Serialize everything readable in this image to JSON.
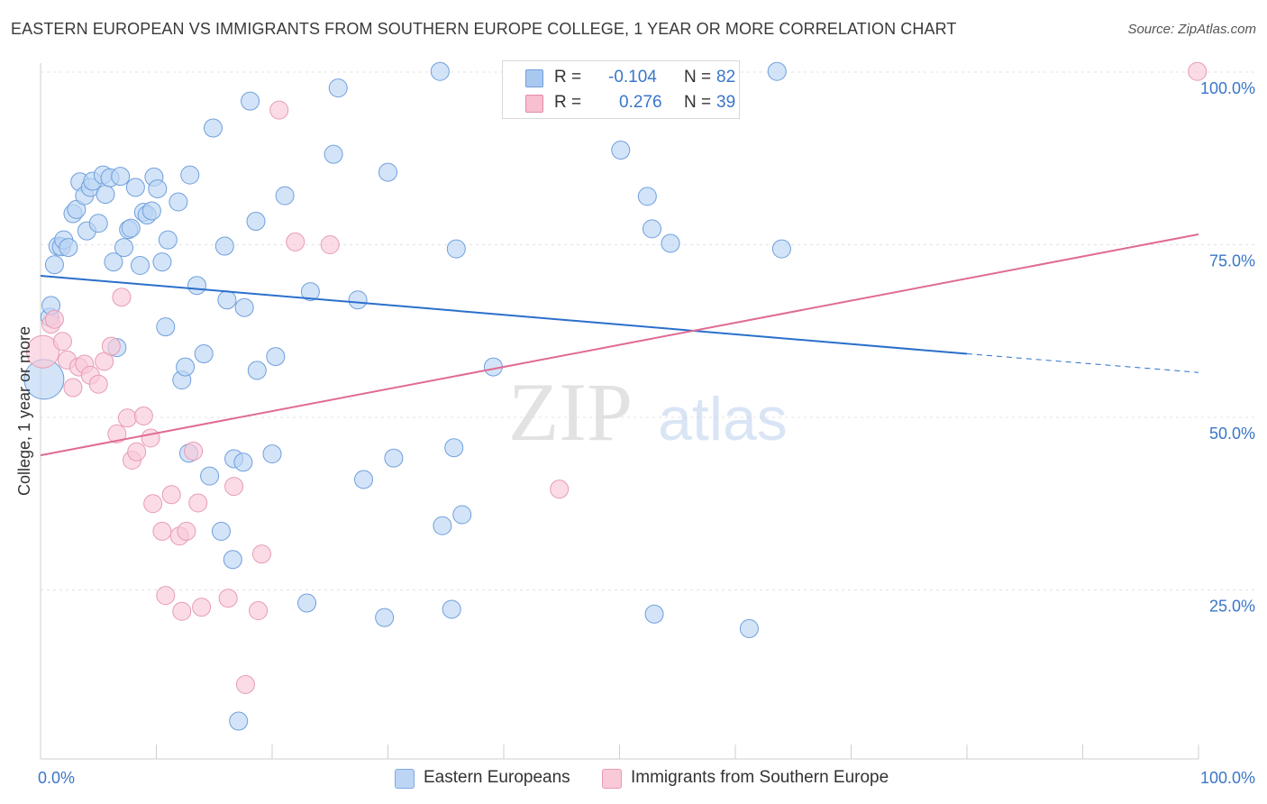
{
  "title": "EASTERN EUROPEAN VS IMMIGRANTS FROM SOUTHERN EUROPE COLLEGE, 1 YEAR OR MORE CORRELATION CHART",
  "source": "Source: ZipAtlas.com",
  "watermark": {
    "zip": "ZIP",
    "atlas": "atlas"
  },
  "legend": {
    "r_label": "R =",
    "n_label": "N =",
    "rows": [
      {
        "r": "-0.104",
        "n": "82",
        "color": "#a9c8f0",
        "border": "#6f9fdc"
      },
      {
        "r": "0.276",
        "n": "39",
        "color": "#f7bfd0",
        "border": "#e48aa8"
      }
    ]
  },
  "bottom_legend": [
    {
      "label": "Eastern Europeans",
      "color": "#bcd5f5",
      "border": "#7fa8e0"
    },
    {
      "label": "Immigrants from Southern Europe",
      "color": "#f9c9d8",
      "border": "#e79bb4"
    }
  ],
  "chart_data": {
    "type": "scatter",
    "title": "EASTERN EUROPEAN VS IMMIGRANTS FROM SOUTHERN EUROPE COLLEGE, 1 YEAR OR MORE CORRELATION CHART",
    "xlabel": "",
    "ylabel": "College, 1 year or more",
    "xlim": [
      0,
      100
    ],
    "ylim": [
      0,
      102
    ],
    "x_tick_labels": [
      "0.0%",
      "100.0%"
    ],
    "y_ticks": [
      25,
      50,
      75,
      100
    ],
    "y_tick_labels": [
      "25.0%",
      "50.0%",
      "75.0%",
      "100.0%"
    ],
    "grid": true,
    "legend_position": "top-center",
    "series": [
      {
        "name": "Eastern Europeans",
        "color": "#6f9fdc",
        "fill": "#bcd5f5",
        "trend": {
          "x": [
            0,
            80,
            100
          ],
          "y": [
            70.5,
            59.2,
            56.5
          ],
          "dashed_from": 80,
          "color": "#2b6fcb"
        },
        "points": [
          [
            0.3,
            55.5,
            22
          ],
          [
            0.8,
            64.5,
            10
          ],
          [
            0.9,
            66.2,
            10
          ],
          [
            1.2,
            72.1,
            10
          ],
          [
            1.5,
            74.8,
            10
          ],
          [
            1.8,
            74.7,
            10
          ],
          [
            2.0,
            75.7,
            10
          ],
          [
            2.4,
            74.6,
            10
          ],
          [
            2.8,
            79.5,
            10
          ],
          [
            3.1,
            80.1,
            10
          ],
          [
            3.4,
            84.1,
            10
          ],
          [
            3.8,
            82.1,
            10
          ],
          [
            4.0,
            77.0,
            10
          ],
          [
            4.3,
            83.3,
            10
          ],
          [
            4.5,
            84.2,
            10
          ],
          [
            5.0,
            78.1,
            10
          ],
          [
            5.4,
            85.1,
            10
          ],
          [
            5.6,
            82.3,
            10
          ],
          [
            6.0,
            84.7,
            10
          ],
          [
            6.3,
            72.5,
            10
          ],
          [
            6.6,
            60.1,
            10
          ],
          [
            6.9,
            84.9,
            10
          ],
          [
            7.2,
            74.6,
            10
          ],
          [
            7.6,
            77.2,
            10
          ],
          [
            7.8,
            77.4,
            10
          ],
          [
            8.2,
            83.3,
            10
          ],
          [
            8.6,
            72.0,
            10
          ],
          [
            8.9,
            79.7,
            10
          ],
          [
            9.2,
            79.3,
            10
          ],
          [
            9.6,
            79.9,
            10
          ],
          [
            9.8,
            84.8,
            10
          ],
          [
            10.1,
            83.1,
            10
          ],
          [
            10.5,
            72.5,
            10
          ],
          [
            10.8,
            63.1,
            10
          ],
          [
            11.0,
            75.7,
            10
          ],
          [
            11.9,
            81.2,
            10
          ],
          [
            12.2,
            55.4,
            10
          ],
          [
            12.5,
            57.3,
            10
          ],
          [
            12.8,
            44.8,
            10
          ],
          [
            12.9,
            85.1,
            10
          ],
          [
            13.5,
            69.1,
            10
          ],
          [
            14.1,
            59.2,
            10
          ],
          [
            14.6,
            41.5,
            10
          ],
          [
            14.9,
            91.9,
            10
          ],
          [
            15.6,
            33.5,
            10
          ],
          [
            15.9,
            74.8,
            10
          ],
          [
            16.1,
            67.0,
            10
          ],
          [
            16.6,
            29.4,
            10
          ],
          [
            16.7,
            44.0,
            10
          ],
          [
            17.1,
            6.0,
            10
          ],
          [
            17.5,
            43.5,
            10
          ],
          [
            17.6,
            65.9,
            10
          ],
          [
            18.1,
            95.8,
            10
          ],
          [
            18.6,
            78.4,
            10
          ],
          [
            18.7,
            56.8,
            10
          ],
          [
            20.0,
            44.7,
            10
          ],
          [
            20.3,
            58.8,
            10
          ],
          [
            21.1,
            82.1,
            10
          ],
          [
            23.0,
            23.1,
            10
          ],
          [
            23.3,
            68.2,
            10
          ],
          [
            25.3,
            88.1,
            10
          ],
          [
            25.7,
            97.7,
            10
          ],
          [
            27.4,
            67.0,
            10
          ],
          [
            27.9,
            41.0,
            10
          ],
          [
            29.7,
            21.0,
            10
          ],
          [
            30.0,
            85.5,
            10
          ],
          [
            30.5,
            44.1,
            10
          ],
          [
            34.5,
            100.1,
            10
          ],
          [
            34.7,
            34.3,
            10
          ],
          [
            35.5,
            22.2,
            10
          ],
          [
            35.7,
            45.6,
            10
          ],
          [
            35.9,
            74.4,
            10
          ],
          [
            36.4,
            35.9,
            10
          ],
          [
            39.1,
            57.3,
            10
          ],
          [
            50.1,
            88.7,
            10
          ],
          [
            52.4,
            82.0,
            10
          ],
          [
            52.8,
            77.3,
            10
          ],
          [
            53.0,
            21.5,
            10
          ],
          [
            54.4,
            75.2,
            10
          ],
          [
            57.0,
            100.1,
            10
          ],
          [
            61.2,
            19.4,
            10
          ],
          [
            63.6,
            100.1,
            10
          ],
          [
            64.0,
            74.4,
            10
          ]
        ]
      },
      {
        "name": "Immigrants from Southern Europe",
        "color": "#e79bb4",
        "fill": "#f9c9d8",
        "trend": {
          "x": [
            0,
            100
          ],
          "y": [
            44.5,
            76.5
          ],
          "color": "#e06a94"
        },
        "points": [
          [
            0.2,
            59.5,
            18
          ],
          [
            0.9,
            63.5,
            10
          ],
          [
            1.2,
            64.2,
            10
          ],
          [
            1.9,
            61.0,
            10
          ],
          [
            2.3,
            58.3,
            10
          ],
          [
            2.8,
            54.3,
            10
          ],
          [
            3.3,
            57.3,
            10
          ],
          [
            3.8,
            57.7,
            10
          ],
          [
            4.3,
            56.1,
            10
          ],
          [
            5.0,
            54.8,
            10
          ],
          [
            5.5,
            58.1,
            10
          ],
          [
            6.1,
            60.3,
            10
          ],
          [
            6.6,
            47.6,
            10
          ],
          [
            7.0,
            67.4,
            10
          ],
          [
            7.5,
            49.9,
            10
          ],
          [
            7.9,
            43.8,
            10
          ],
          [
            8.3,
            45.0,
            10
          ],
          [
            8.9,
            50.2,
            10
          ],
          [
            9.5,
            47.0,
            10
          ],
          [
            9.7,
            37.5,
            10
          ],
          [
            10.5,
            33.5,
            10
          ],
          [
            10.8,
            24.2,
            10
          ],
          [
            11.3,
            38.8,
            10
          ],
          [
            12.0,
            32.8,
            10
          ],
          [
            12.2,
            21.9,
            10
          ],
          [
            12.6,
            33.5,
            10
          ],
          [
            13.2,
            45.1,
            10
          ],
          [
            13.6,
            37.6,
            10
          ],
          [
            13.9,
            22.5,
            10
          ],
          [
            16.2,
            23.8,
            10
          ],
          [
            16.7,
            40.0,
            10
          ],
          [
            17.7,
            11.3,
            10
          ],
          [
            18.8,
            22.0,
            10
          ],
          [
            19.1,
            30.2,
            10
          ],
          [
            20.6,
            94.5,
            10
          ],
          [
            22.0,
            75.4,
            10
          ],
          [
            25.0,
            75.0,
            10
          ],
          [
            44.8,
            39.6,
            10
          ],
          [
            99.9,
            100.1,
            10
          ]
        ]
      }
    ]
  }
}
